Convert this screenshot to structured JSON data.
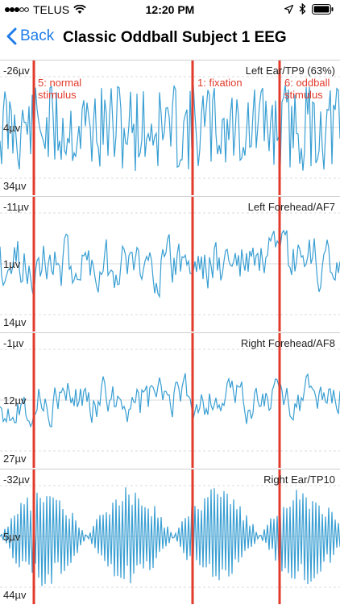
{
  "status": {
    "carrier": "TELUS",
    "time": "12:20 PM",
    "icons": [
      "signal-dots-icon",
      "wifi-icon",
      "location-arrow-icon",
      "bluetooth-icon",
      "battery-icon"
    ]
  },
  "nav": {
    "back_label": "Back",
    "title": "Classic Oddball Subject 1 EEG"
  },
  "colors": {
    "accent": "#1f7ce8",
    "trace": "#3a9fd3",
    "marker": "#e23b2b"
  },
  "markers": [
    {
      "label_line1": "5: normal",
      "label_line2": "stimulus"
    },
    {
      "label_line1": "1: fixation",
      "label_line2": ""
    },
    {
      "label_line1": "6: oddball",
      "label_line2": "stimulus"
    }
  ],
  "channels": [
    {
      "name": "Left Ear/TP9 (63%)",
      "top_label": "-26µv",
      "mid_label": "4µv",
      "bottom_label": "34µv"
    },
    {
      "name": "Left Forehead/AF7",
      "top_label": "-11µv",
      "mid_label": "1µv",
      "bottom_label": "14µv"
    },
    {
      "name": "Right Forehead/AF8",
      "top_label": "-1µv",
      "mid_label": "12µv",
      "bottom_label": "27µv"
    },
    {
      "name": "Right Ear/TP10",
      "top_label": "-32µv",
      "mid_label": "5µv",
      "bottom_label": "44µv"
    }
  ]
}
